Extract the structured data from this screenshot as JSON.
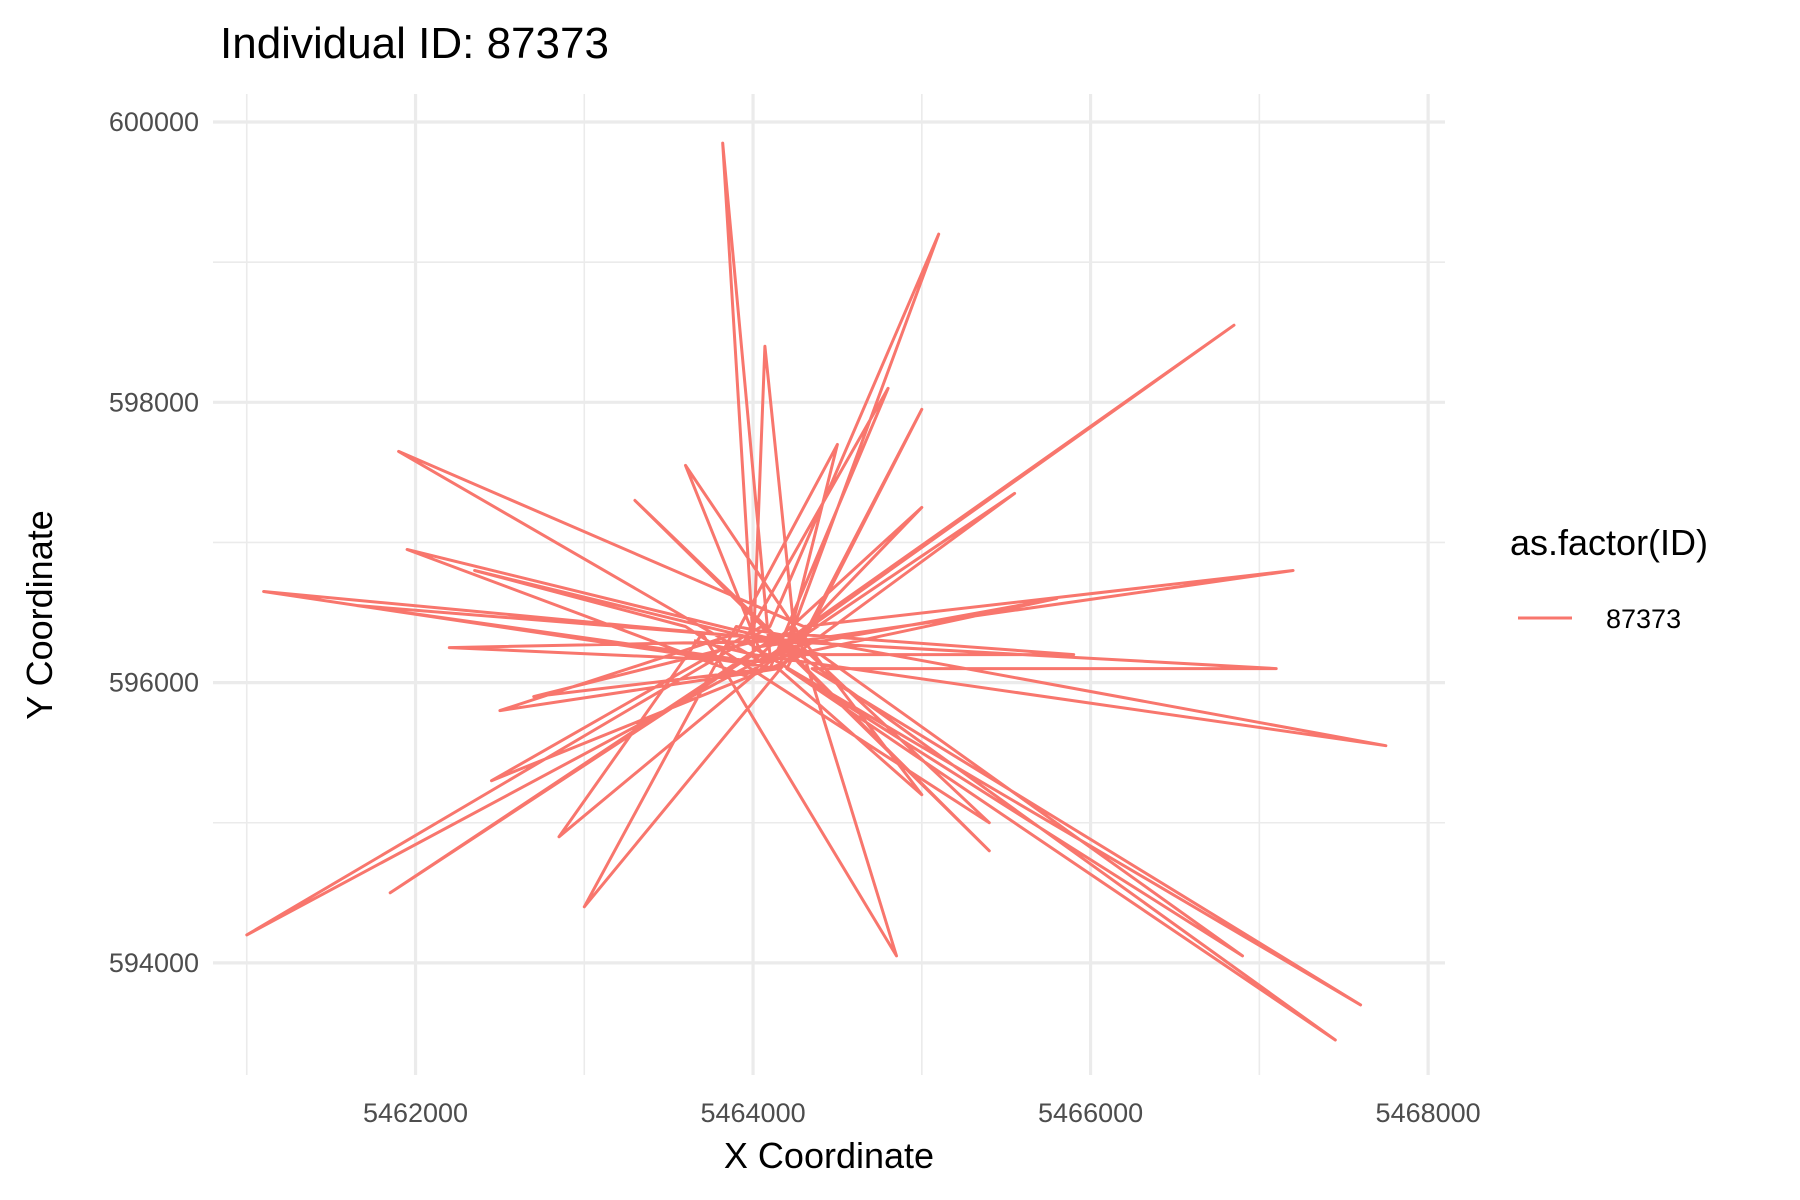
{
  "chart_data": {
    "type": "line",
    "title": "Individual ID: 87373",
    "xlabel": "X Coordinate",
    "ylabel": "Y Coordinate",
    "xlim": [
      5460800,
      5468100
    ],
    "ylim": [
      593200,
      600200
    ],
    "x_ticks": [
      5462000,
      5464000,
      5466000,
      5468000
    ],
    "x_tick_labels": [
      "5462000",
      "5464000",
      "5466000",
      "5468000"
    ],
    "y_ticks": [
      594000,
      596000,
      598000,
      600000
    ],
    "y_tick_labels": [
      "594000",
      "596000",
      "598000",
      "600000"
    ],
    "grid": true,
    "legend": {
      "title": "as.factor(ID)",
      "position": "right"
    },
    "series": [
      {
        "name": "87373",
        "color": "#F8766D",
        "x": [
          5464000,
          5463820,
          5464100,
          5461000,
          5464100,
          5465100,
          5464150,
          5461100,
          5464200,
          5466850,
          5464050,
          5461900,
          5464300,
          5467200,
          5464000,
          5467600,
          5464350,
          5467100,
          5464100,
          5461850,
          5464000,
          5467750,
          5463900,
          5463000,
          5464300,
          5465000,
          5464200,
          5467450,
          5464100,
          5463300,
          5464250,
          5465550,
          5463950,
          5461950,
          5464150,
          5465400,
          5464050,
          5462450,
          5464300,
          5464850,
          5463700,
          5462850,
          5464200,
          5465000,
          5464000,
          5461650,
          5464250,
          5465400,
          5463600,
          5462350,
          5464400,
          5466900,
          5463950,
          5464800,
          5464100,
          5462700,
          5464200,
          5465900,
          5464050,
          5463600,
          5464300,
          5465000,
          5464150,
          5462500,
          5463900,
          5464500,
          5464200,
          5465800,
          5464050,
          5462200,
          5464250,
          5464070,
          5464000,
          5463650
        ],
        "y": [
          596300,
          599850,
          596200,
          594200,
          596400,
          599200,
          596100,
          596650,
          596300,
          598550,
          596150,
          597650,
          596400,
          596800,
          596250,
          593700,
          596100,
          596100,
          596300,
          594500,
          596200,
          595550,
          596400,
          594400,
          596300,
          597950,
          596100,
          593450,
          596350,
          597300,
          596200,
          597350,
          596050,
          596950,
          596300,
          594800,
          596400,
          595300,
          596200,
          594050,
          596350,
          594900,
          596250,
          597250,
          596150,
          596550,
          596300,
          595000,
          596400,
          596800,
          596200,
          594050,
          596300,
          598100,
          596100,
          595900,
          596350,
          596200,
          596200,
          597550,
          596300,
          595200,
          596100,
          595800,
          596350,
          597700,
          596250,
          596600,
          596150,
          596250,
          596300,
          598400,
          596200,
          596300
        ]
      }
    ]
  }
}
